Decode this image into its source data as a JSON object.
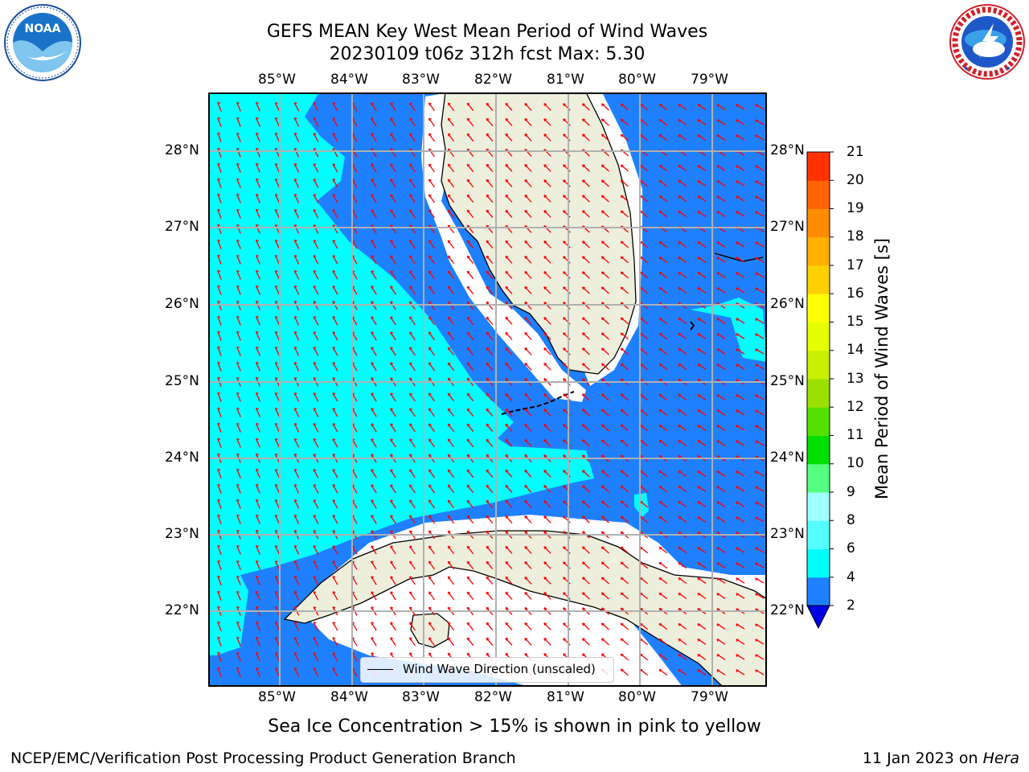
{
  "header": {
    "title_line1": "GEFS MEAN Key West Mean Period of Wind Waves",
    "title_line2": "20230109 t06z 312h fcst   Max: 5.30"
  },
  "logos": {
    "left": {
      "name": "noaa-logo",
      "text": "NOAA",
      "ring_text": "NATIONAL OCEANIC AND ATMOSPHERIC ADMINISTRATION · U.S. DEPARTMENT OF COMMERCE"
    },
    "right": {
      "name": "nws-logo",
      "ring_text": "NATIONAL WEATHER SERVICE"
    }
  },
  "map": {
    "lon_labels": [
      "85°W",
      "84°W",
      "83°W",
      "82°W",
      "81°W",
      "80°W",
      "79°W"
    ],
    "lat_labels": [
      "28°N",
      "27°N",
      "26°N",
      "25°N",
      "24°N",
      "23°N",
      "22°N"
    ],
    "legend_label": "Wind Wave Direction (unscaled)",
    "colors": {
      "period_2_4": "#1e80ff",
      "period_4_6": "#00ffff",
      "period_below_2": "#0000e6",
      "land": "#eeeedd",
      "arrow": "#ff0000"
    }
  },
  "colorbar": {
    "label": "Mean Period of Wind Waves [s]",
    "ticks": [
      "2",
      "4",
      "6",
      "8",
      "9",
      "10",
      "11",
      "12",
      "13",
      "14",
      "15",
      "16",
      "17",
      "18",
      "19",
      "20",
      "21"
    ],
    "colors": [
      "#1e80ff",
      "#00ffff",
      "#55ffff",
      "#a0ffff",
      "#55ff80",
      "#00e000",
      "#55e000",
      "#9ce000",
      "#c8f000",
      "#e6ff00",
      "#ffff00",
      "#ffd000",
      "#ffb000",
      "#ff8c00",
      "#ff6400",
      "#ff3200"
    ],
    "under_color": "#0000e6"
  },
  "footer": {
    "note": "Sea Ice Concentration > 15% is shown in pink to yellow",
    "left": "NCEP/EMC/Verification Post Processing Product Generation Branch",
    "date": "11 Jan 2023 on ",
    "host": "Hera"
  }
}
